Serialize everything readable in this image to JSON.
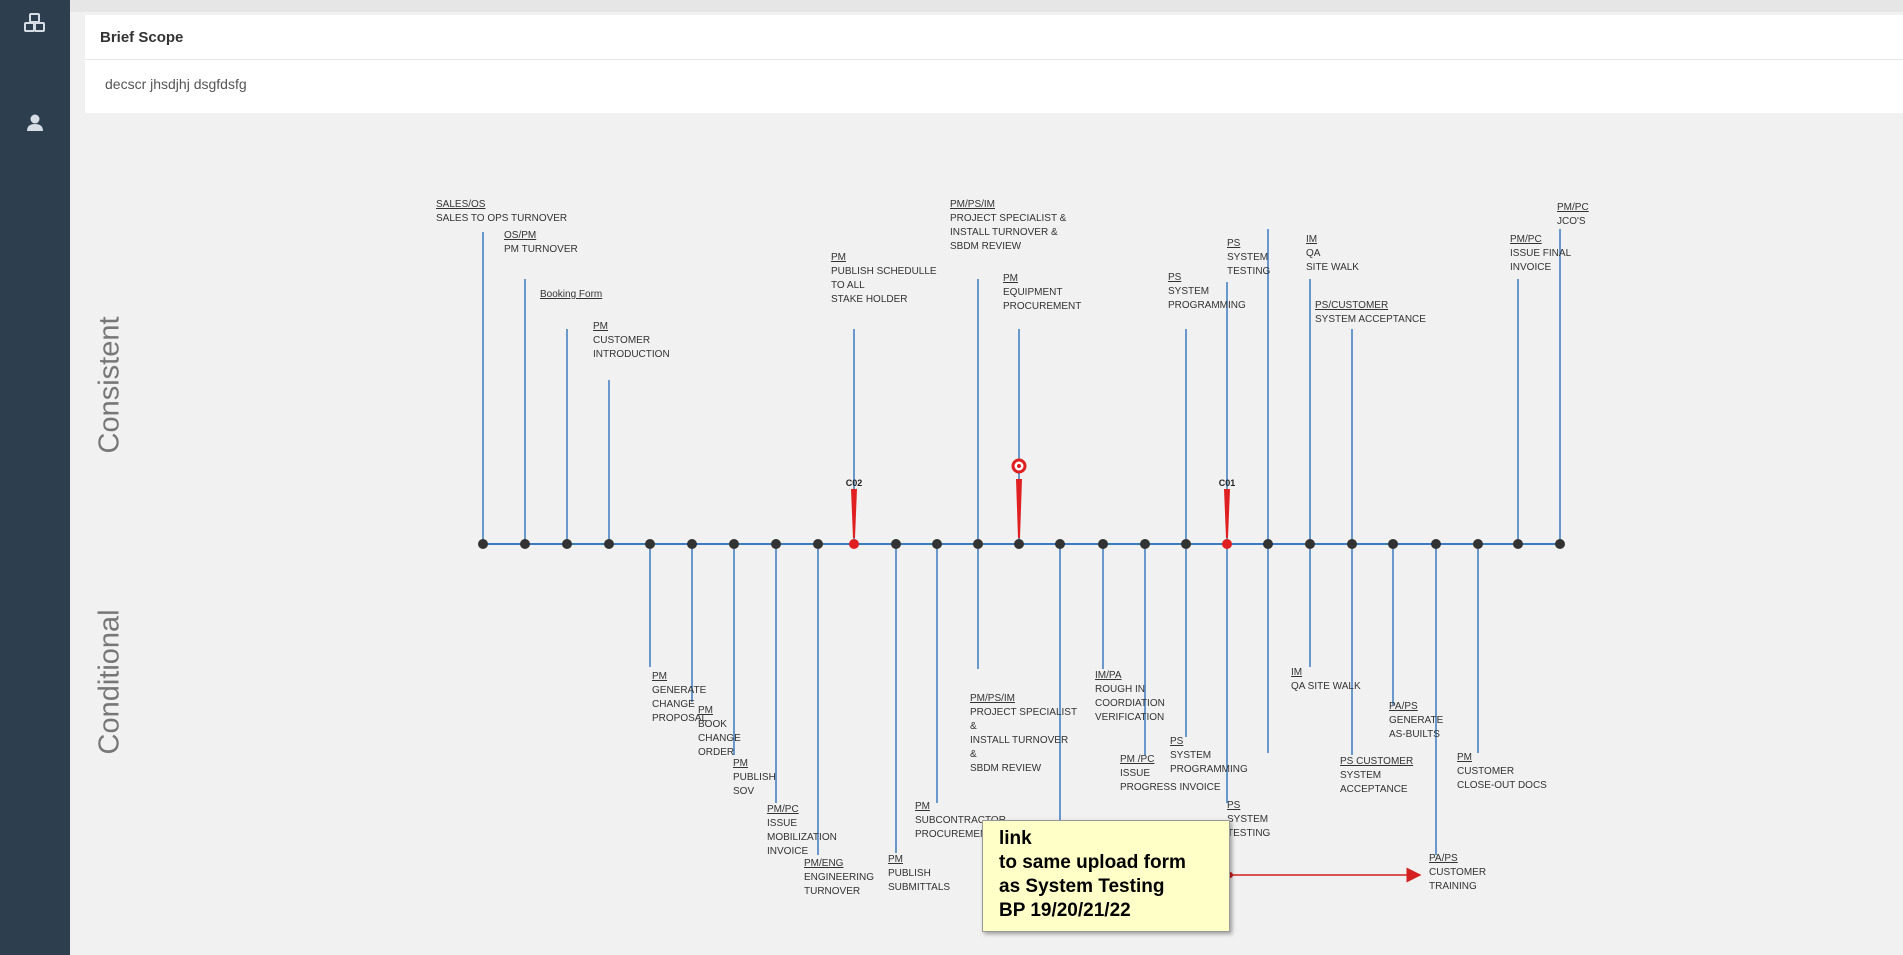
{
  "brief_scope": {
    "title": "Brief Scope",
    "text": "decscr jhsdjhj dsgfdsfg"
  },
  "rows": {
    "top": "Consistent",
    "bottom": "Conditional"
  },
  "colors": {
    "sidebar": "#2d3e4f",
    "line": "#3b7bbf",
    "node": "#333333",
    "flag": "#e02020",
    "note_bg": "#ffffc8"
  },
  "icons": {
    "sidebar_top": "cubes-icon",
    "sidebar_user": "user-icon"
  },
  "markers": {
    "co2": "C02",
    "co1": "C01"
  },
  "top_steps": [
    {
      "role": "SALES/OS",
      "lines": [
        "SALES TO OPS TURNOVER"
      ]
    },
    {
      "role": "OS/PM",
      "lines": [
        "PM TURNOVER"
      ]
    },
    {
      "role": "Booking Form",
      "lines": []
    },
    {
      "role": "PM",
      "lines": [
        "CUSTOMER",
        "INTRODUCTION"
      ]
    },
    {
      "role": "PM",
      "lines": [
        "PUBLISH SCHEDULLE",
        "TO ALL",
        "STAKE HOLDER"
      ]
    },
    {
      "role": "PM/PS/IM",
      "lines": [
        "PROJECT SPECIALIST &",
        "INSTALL TURNOVER &",
        "SBDM REVIEW"
      ]
    },
    {
      "role": "PM",
      "lines": [
        "EQUIPMENT",
        "PROCUREMENT"
      ]
    },
    {
      "role": "PS",
      "lines": [
        "SYSTEM",
        "PROGRAMMING"
      ]
    },
    {
      "role": "PS",
      "lines": [
        "SYSTEM",
        "TESTING"
      ]
    },
    {
      "role": "IM",
      "lines": [
        "QA",
        "SITE WALK"
      ]
    },
    {
      "role": "PS/CUSTOMER",
      "lines": [
        "SYSTEM ACCEPTANCE"
      ]
    },
    {
      "role": "PM/PC",
      "lines": [
        "ISSUE FINAL",
        "INVOICE"
      ]
    },
    {
      "role": "PM/PC",
      "lines": [
        "JCO'S"
      ]
    }
  ],
  "bottom_steps": [
    {
      "role": "PM",
      "lines": [
        "GENERATE",
        "CHANGE",
        "PROPOSAL"
      ]
    },
    {
      "role": "PM",
      "lines": [
        "BOOK",
        "CHANGE",
        "ORDER"
      ]
    },
    {
      "role": "PM",
      "lines": [
        "PUBLISH",
        "SOV"
      ]
    },
    {
      "role": "PM/PC",
      "lines": [
        "ISSUE",
        "MOBILIZATION",
        "INVOICE"
      ]
    },
    {
      "role": "PM/ENG",
      "lines": [
        "ENGINEERING",
        "TURNOVER"
      ]
    },
    {
      "role": "PM",
      "lines": [
        "PUBLISH",
        "SUBMITTALS"
      ]
    },
    {
      "role": "PM",
      "lines": [
        "SUBCONTRACTOR",
        "PROCUREMENT"
      ]
    },
    {
      "role": "PM/PS/IM",
      "lines": [
        "PROJECT SPECIALIST",
        "&",
        "INSTALL TURNOVER",
        "&",
        "SBDM REVIEW"
      ]
    },
    {
      "role": "IM/PA",
      "lines": [
        "ROUGH IN",
        "COORDIATION",
        "VERIFICATION"
      ]
    },
    {
      "role": "PM /PC",
      "lines": [
        "ISSUE",
        "PROGRESS INVOICE"
      ]
    },
    {
      "role": "PS",
      "lines": [
        "SYSTEM",
        "PROGRAMMING"
      ]
    },
    {
      "role": "PS",
      "lines": [
        "SYSTEM",
        "TESTING"
      ]
    },
    {
      "role": "IM",
      "lines": [
        "QA SITE WALK"
      ]
    },
    {
      "role": "PS CUSTOMER",
      "lines": [
        "SYSTEM",
        "ACCEPTANCE"
      ]
    },
    {
      "role": "PA/PS",
      "lines": [
        "GENERATE",
        "AS-BUILTS"
      ]
    },
    {
      "role": "PA/PS",
      "lines": [
        "CUSTOMER",
        "TRAINING"
      ]
    },
    {
      "role": "PM",
      "lines": [
        "CUSTOMER",
        "CLOSE-OUT DOCS"
      ]
    }
  ],
  "note": {
    "lines": [
      "link",
      "to same upload form",
      "as System Testing",
      "BP 19/20/21/22"
    ]
  }
}
